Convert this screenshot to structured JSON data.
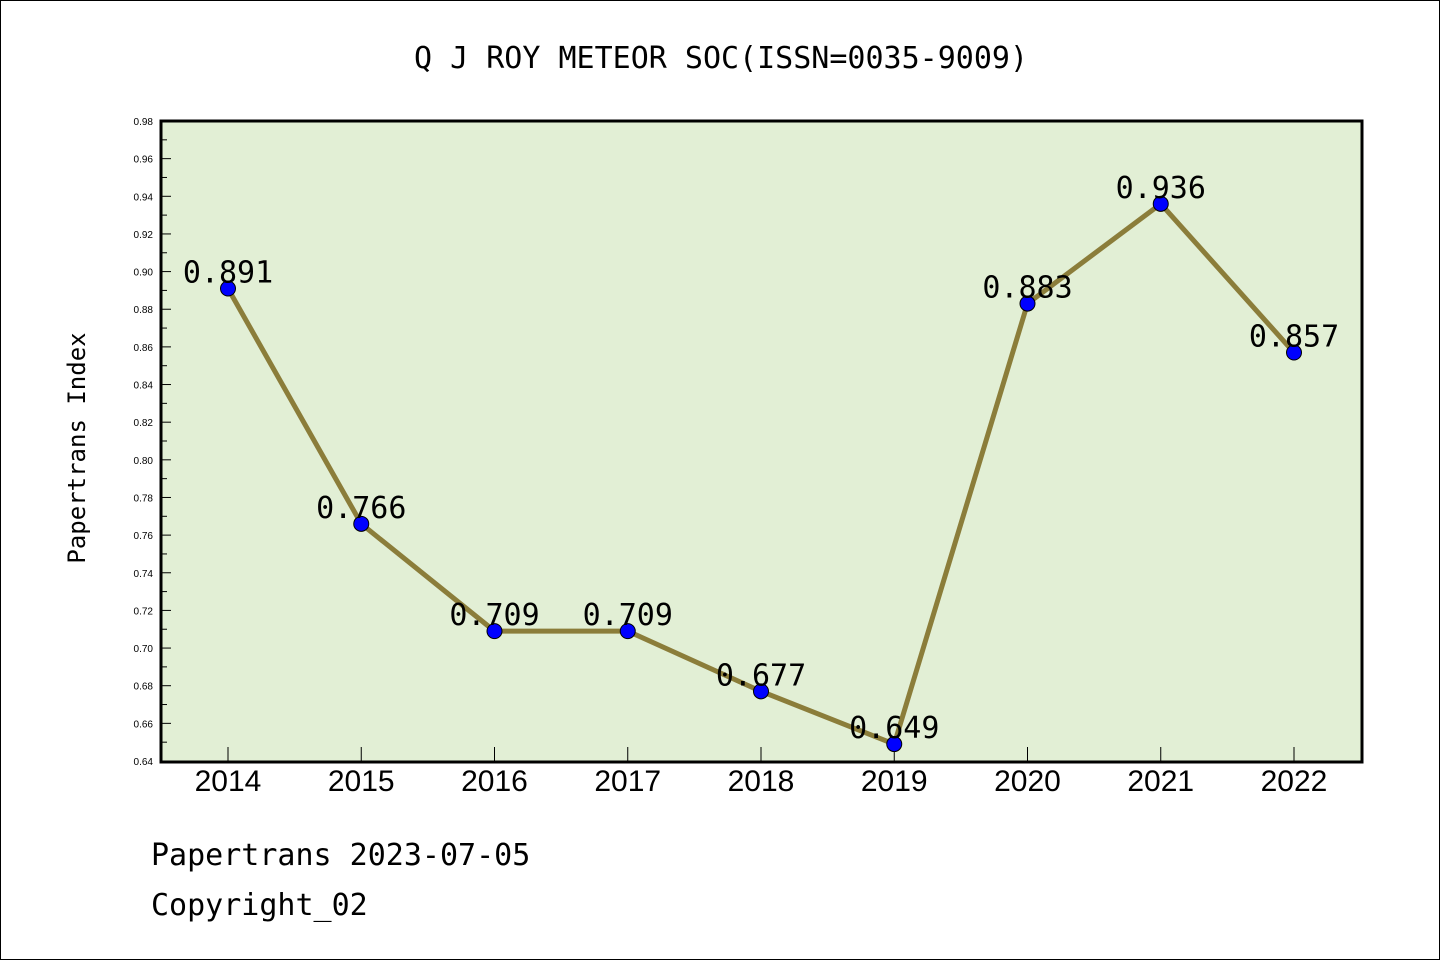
{
  "chart_data": {
    "type": "line",
    "title": "Q J ROY METEOR SOC(ISSN=0035-9009)",
    "xlabel": "",
    "ylabel": "Papertrans Index",
    "categories": [
      "2014",
      "2015",
      "2016",
      "2017",
      "2018",
      "2019",
      "2020",
      "2021",
      "2022"
    ],
    "series": [
      {
        "values": [
          0.891,
          0.766,
          0.709,
          0.709,
          0.677,
          0.649,
          0.883,
          0.936,
          0.857
        ],
        "data_labels": [
          "0.891",
          "0.766",
          "0.709",
          "0.709",
          "0.677",
          "0.649",
          "0.883",
          "0.936",
          "0.857"
        ]
      }
    ],
    "ylim": [
      0.64,
      0.98
    ],
    "yticks": [
      "0.64",
      "0.66",
      "0.68",
      "0.70",
      "0.72",
      "0.74",
      "0.76",
      "0.78",
      "0.80",
      "0.82",
      "0.84",
      "0.86",
      "0.88",
      "0.90",
      "0.92",
      "0.94",
      "0.96",
      "0.98"
    ],
    "grid": false,
    "colors": {
      "plot_background": "#e2efd5",
      "line": "#8b7d3a",
      "marker": "#0000ff",
      "axis": "#000000"
    }
  },
  "footer": {
    "line1": "Papertrans 2023-07-05",
    "line2": "Copyright_02"
  }
}
